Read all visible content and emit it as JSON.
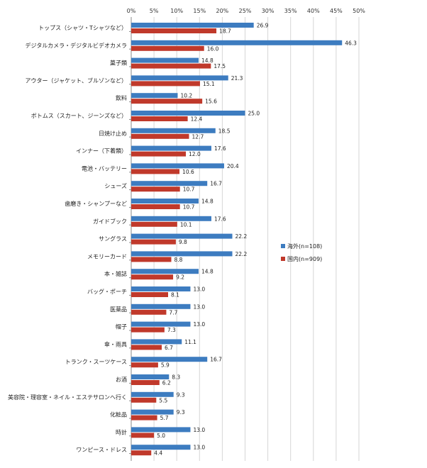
{
  "chart_data": {
    "type": "bar",
    "orientation": "horizontal",
    "title": "",
    "xlabel": "",
    "ylabel": "",
    "xlim": [
      0,
      50
    ],
    "ticks": [
      "0%",
      "5%",
      "10%",
      "15%",
      "20%",
      "25%",
      "30%",
      "35%",
      "40%",
      "45%",
      "50%"
    ],
    "tick_values": [
      0,
      5,
      10,
      15,
      20,
      25,
      30,
      35,
      40,
      45,
      50
    ],
    "grid": true,
    "legend_position": "right",
    "categories": [
      "トップス（シャツ・Tシャツなど）",
      "デジタルカメラ・デジタルビデオカメラ",
      "菓子類",
      "アウター（ジャケット、ブルゾンなど）",
      "飲料",
      "ボトムス（スカート、ジーンズなど）",
      "日焼け止め",
      "インナー（下着類）",
      "電池・バッテリー",
      "シューズ",
      "歯磨き・シャンプーなど",
      "ガイドブック",
      "サングラス",
      "メモリーカード",
      "本・雑誌",
      "バッグ・ポーチ",
      "医薬品",
      "帽子",
      "傘・雨具",
      "トランク・スーツケース",
      "お酒",
      "美容院・理容室・ネイル・エステサロンへ行く",
      "化粧品",
      "時計",
      "ワンピース・ドレス"
    ],
    "series": [
      {
        "name": "海外(n=108)",
        "color": "#3d7cc0",
        "values": [
          26.9,
          46.3,
          14.8,
          21.3,
          10.2,
          25.0,
          18.5,
          17.6,
          20.4,
          16.7,
          14.8,
          17.6,
          22.2,
          22.2,
          14.8,
          13.0,
          13.0,
          13.0,
          11.1,
          16.7,
          8.3,
          9.3,
          9.3,
          13.0,
          13.0
        ],
        "labels": [
          "26.9",
          "46.3",
          "14.8",
          "21.3",
          "10.2",
          "25.0",
          "18.5",
          "17.6",
          "20.4",
          "16.7",
          "14.8",
          "17.6",
          "22.2",
          "22.2",
          "14.8",
          "13.0",
          "13.0",
          "13.0",
          "11.1",
          "16.7",
          "8.3",
          "9.3",
          "9.3",
          "13.0",
          "13.0"
        ]
      },
      {
        "name": "国内(n=909)",
        "color": "#c0392b",
        "values": [
          18.7,
          16.0,
          17.5,
          15.1,
          15.6,
          12.4,
          12.7,
          12.0,
          10.6,
          10.7,
          10.7,
          10.1,
          9.8,
          8.8,
          9.2,
          8.1,
          7.7,
          7.3,
          6.7,
          5.9,
          6.2,
          5.5,
          5.7,
          5.0,
          4.4
        ],
        "labels": [
          "18.7",
          "16.0",
          "17.5",
          "15.1",
          "15.6",
          "12.4",
          "12.7",
          "12.0",
          "10.6",
          "10.7",
          "10.7",
          "10.1",
          "9.8",
          "8.8",
          "9.2",
          "8.1",
          "7.7",
          "7.3",
          "6.7",
          "5.9",
          "6.2",
          "5.5",
          "5.7",
          "5.0",
          "4.4"
        ]
      }
    ]
  }
}
